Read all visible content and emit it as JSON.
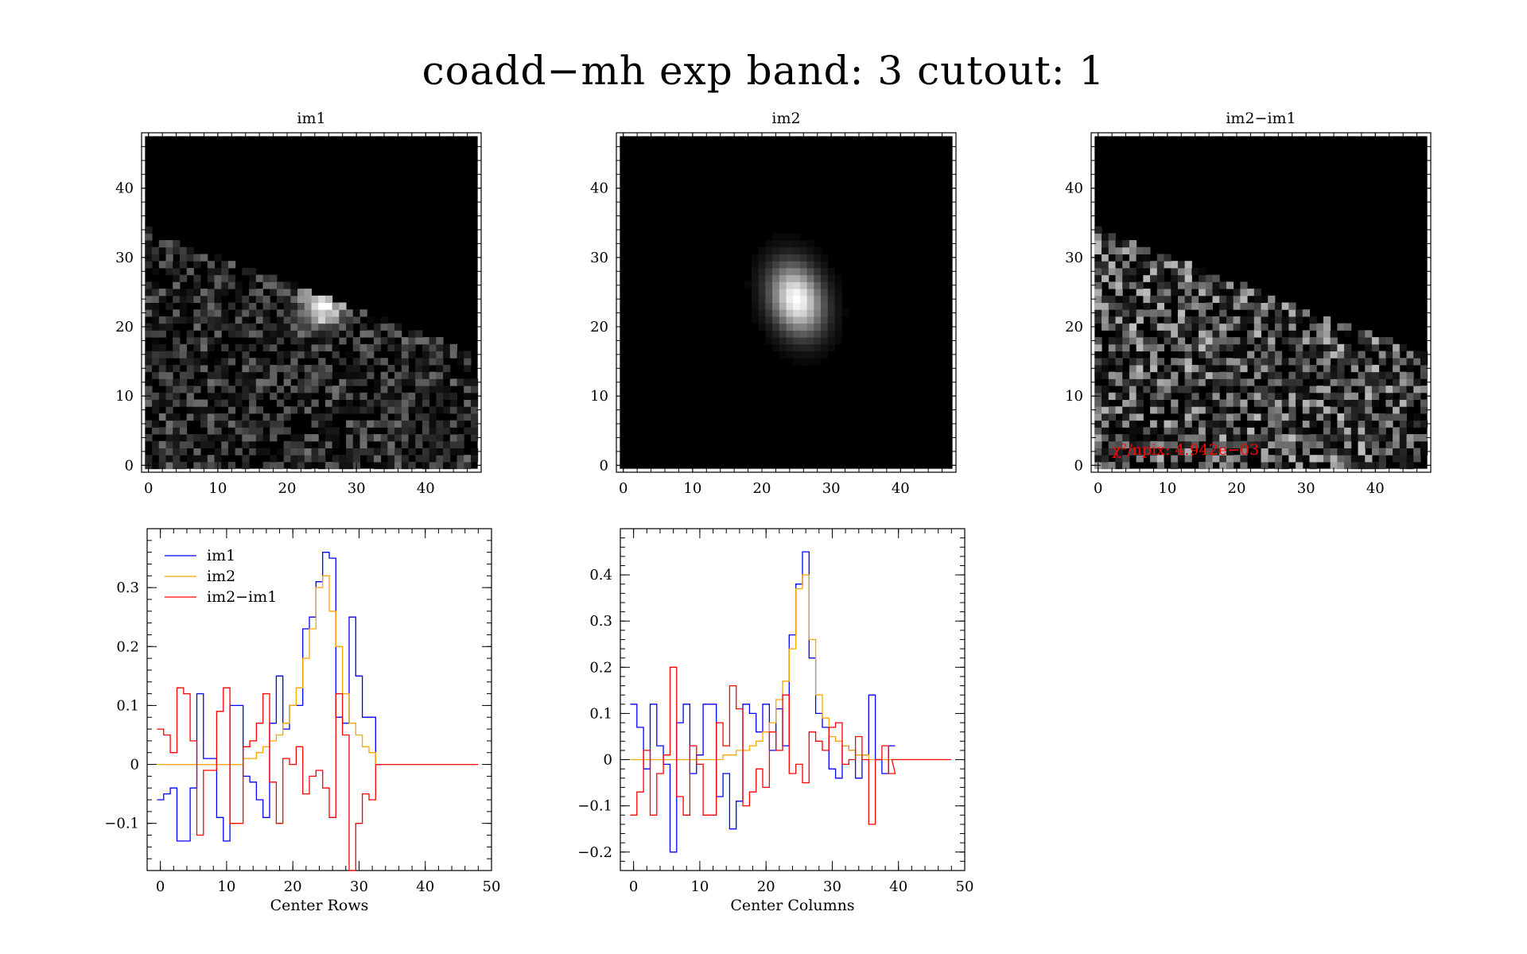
{
  "title": "coadd−mh exp band: 3 cutout: 1",
  "chart_data": [
    {
      "type": "heatmap",
      "title": "im1",
      "xlim": [
        -1,
        48
      ],
      "ylim": [
        -1,
        48
      ],
      "xticks": [
        0,
        10,
        20,
        30,
        40
      ],
      "yticks": [
        0,
        10,
        20,
        30,
        40
      ],
      "colormap": "grayscale",
      "pixels": 48,
      "source": {
        "peak_row": 23,
        "peak_col": 25,
        "peak": 0.37,
        "sigma": 2.0
      },
      "noise_edge": "upper-right region is empty (masked)"
    },
    {
      "type": "heatmap",
      "title": "im2",
      "xlim": [
        -1,
        48
      ],
      "ylim": [
        -1,
        48
      ],
      "xticks": [
        0,
        10,
        20,
        30,
        40
      ],
      "yticks": [
        0,
        10,
        20,
        30,
        40
      ],
      "colormap": "grayscale",
      "pixels": 48,
      "source": {
        "peak_row": 24,
        "peak_col": 25,
        "peak": 0.45,
        "sigma_x": 2.4,
        "sigma_y": 3.4
      }
    },
    {
      "type": "heatmap",
      "title": "im2−im1",
      "xlim": [
        -1,
        48
      ],
      "ylim": [
        -1,
        48
      ],
      "xticks": [
        0,
        10,
        20,
        30,
        40
      ],
      "yticks": [
        0,
        10,
        20,
        30,
        40
      ],
      "colormap": "grayscale",
      "pixels": 48,
      "annotation": {
        "text": "χ²/npix: 4.942e−03",
        "color": "#ff0000"
      }
    },
    {
      "type": "line",
      "title": "",
      "xlabel": "Center Rows",
      "ylabel": "",
      "xlim": [
        -2,
        50
      ],
      "ylim": [
        -0.18,
        0.4
      ],
      "xticks": [
        0,
        10,
        20,
        30,
        40,
        50
      ],
      "yticks": [
        -0.1,
        0,
        0.1,
        0.2,
        0.3
      ],
      "ytick_labels": [
        "−0.1",
        "0",
        "0.1",
        "0.2",
        "0.3"
      ],
      "step": true,
      "legend": "top-left",
      "x": [
        0,
        1,
        2,
        3,
        4,
        5,
        6,
        7,
        8,
        9,
        10,
        11,
        12,
        13,
        14,
        15,
        16,
        17,
        18,
        19,
        20,
        21,
        22,
        23,
        24,
        25,
        26,
        27,
        28,
        29,
        30,
        31,
        32,
        33
      ],
      "series": [
        {
          "name": "im1",
          "color": "#0000ff",
          "values": [
            -0.06,
            -0.05,
            -0.04,
            -0.13,
            -0.13,
            -0.04,
            0.12,
            0.01,
            0.01,
            -0.09,
            -0.13,
            0.1,
            0.1,
            -0.02,
            -0.03,
            -0.06,
            -0.09,
            0.07,
            0.15,
            0.06,
            0.1,
            0.1,
            0.23,
            0.25,
            0.31,
            0.36,
            0.35,
            0.08,
            0.07,
            0.25,
            0.15,
            0.08,
            0.08,
            0.0
          ]
        },
        {
          "name": "im2",
          "color": "#ffa500",
          "values": [
            0.0,
            0.0,
            0.0,
            0.0,
            0.0,
            0.0,
            0.0,
            0.0,
            0.0,
            0.0,
            0.0,
            0.0,
            0.0,
            0.01,
            0.01,
            0.02,
            0.03,
            0.04,
            0.05,
            0.07,
            0.1,
            0.13,
            0.18,
            0.23,
            0.3,
            0.32,
            0.26,
            0.2,
            0.12,
            0.07,
            0.05,
            0.03,
            0.02,
            0.0
          ]
        },
        {
          "name": "im2−im1",
          "color": "#ff0000",
          "values": [
            0.06,
            0.05,
            0.02,
            0.13,
            0.12,
            0.04,
            -0.12,
            -0.01,
            -0.01,
            0.09,
            0.13,
            -0.1,
            -0.1,
            0.03,
            0.04,
            0.07,
            0.12,
            -0.03,
            -0.1,
            0.01,
            0.0,
            0.03,
            -0.05,
            -0.02,
            -0.01,
            -0.04,
            -0.09,
            0.12,
            0.05,
            -0.18,
            -0.1,
            -0.05,
            -0.06,
            0.0
          ]
        }
      ],
      "tail_x": [
        33,
        48
      ],
      "tail_value": 0.0
    },
    {
      "type": "line",
      "title": "",
      "xlabel": "Center Columns",
      "ylabel": "",
      "xlim": [
        -2,
        50
      ],
      "ylim": [
        -0.24,
        0.5
      ],
      "xticks": [
        0,
        10,
        20,
        30,
        40,
        50
      ],
      "yticks": [
        -0.2,
        -0.1,
        0,
        0.1,
        0.2,
        0.3,
        0.4
      ],
      "ytick_labels": [
        "−0.2",
        "−0.1",
        "0",
        "0.1",
        "0.2",
        "0.3",
        "0.4"
      ],
      "step": true,
      "x": [
        0,
        1,
        2,
        3,
        4,
        5,
        6,
        7,
        8,
        9,
        10,
        11,
        12,
        13,
        14,
        15,
        16,
        17,
        18,
        19,
        20,
        21,
        22,
        23,
        24,
        25,
        26,
        27,
        28,
        29,
        30,
        31,
        32,
        33,
        34,
        35,
        36,
        37,
        38,
        39
      ],
      "series": [
        {
          "name": "im1",
          "color": "#0000ff",
          "values": [
            0.12,
            0.07,
            -0.02,
            0.12,
            0.03,
            -0.01,
            -0.2,
            0.08,
            0.12,
            -0.03,
            0.01,
            0.12,
            0.12,
            -0.08,
            -0.03,
            -0.15,
            -0.09,
            0.12,
            0.1,
            0.06,
            0.12,
            0.02,
            0.11,
            0.03,
            0.27,
            0.38,
            0.45,
            0.22,
            0.1,
            0.07,
            -0.02,
            -0.04,
            0.03,
            0.02,
            -0.04,
            0.01,
            0.14,
            0.0,
            -0.03,
            0.03
          ]
        },
        {
          "name": "im2",
          "color": "#ffa500",
          "values": [
            0.0,
            0.0,
            0.0,
            0.0,
            0.0,
            0.0,
            0.0,
            0.0,
            0.0,
            0.0,
            0.0,
            0.0,
            0.0,
            0.0,
            0.01,
            0.01,
            0.02,
            0.02,
            0.03,
            0.04,
            0.06,
            0.08,
            0.13,
            0.17,
            0.24,
            0.37,
            0.4,
            0.26,
            0.14,
            0.09,
            0.05,
            0.04,
            0.03,
            0.02,
            0.01,
            0.01,
            0.0,
            0.0,
            0.0,
            0.0
          ]
        },
        {
          "name": "im2−im1",
          "color": "#ff0000",
          "values": [
            -0.12,
            -0.07,
            0.02,
            -0.12,
            -0.03,
            0.01,
            0.2,
            -0.08,
            -0.12,
            0.03,
            -0.01,
            -0.12,
            -0.12,
            0.08,
            0.03,
            0.16,
            0.11,
            -0.1,
            -0.07,
            -0.02,
            -0.06,
            0.06,
            0.02,
            0.14,
            -0.03,
            -0.01,
            -0.05,
            0.06,
            0.04,
            0.02,
            0.07,
            0.08,
            -0.01,
            0.0,
            0.05,
            0.0,
            -0.14,
            0.0,
            0.03,
            -0.03
          ]
        }
      ],
      "tail_x": [
        39,
        48
      ],
      "tail_value": 0.0
    }
  ]
}
